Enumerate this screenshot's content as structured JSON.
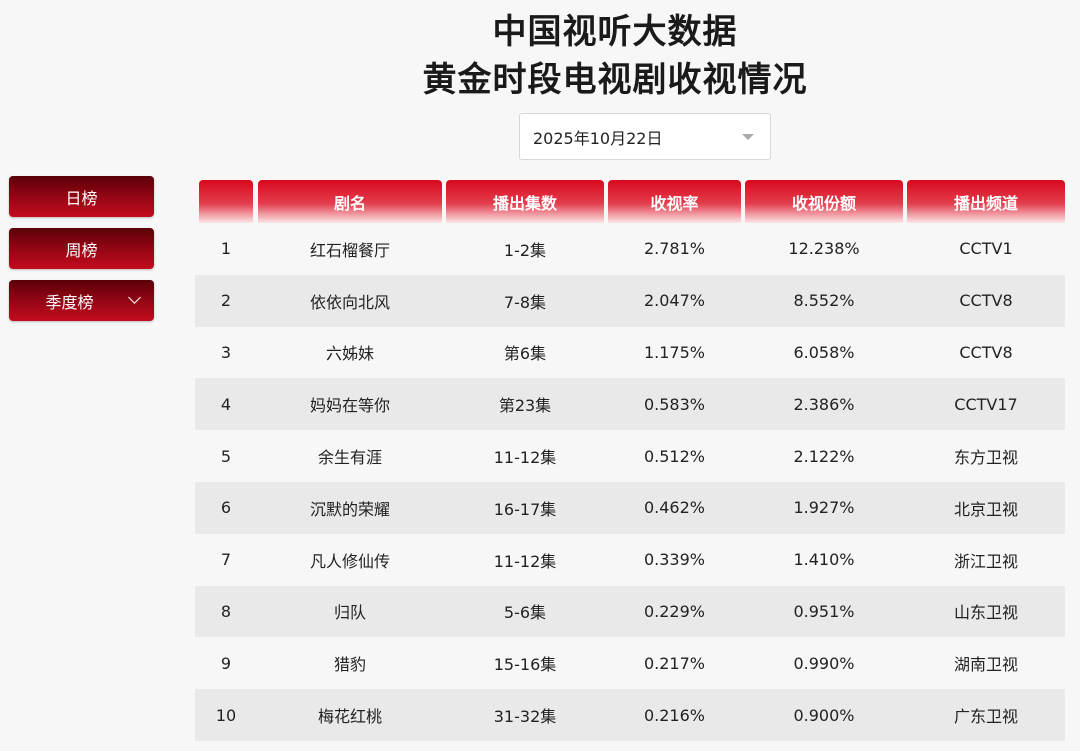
{
  "title_line1": "中国视听大数据",
  "title_line2": "黄金时段电视剧收视情况",
  "date_select": {
    "value": "2025年10月22日"
  },
  "side_menu": [
    {
      "label": "日榜"
    },
    {
      "label": "周榜"
    },
    {
      "label": "季度榜"
    }
  ],
  "colors": {
    "accent": "#d8081c",
    "button_dark": "#5a0008",
    "row_alt": "#e9e9e9"
  },
  "table": {
    "headers": [
      "",
      "剧名",
      "播出集数",
      "收视率",
      "收视份额",
      "播出频道"
    ],
    "rows": [
      [
        "1",
        "红石榴餐厅",
        "1-2集",
        "2.781%",
        "12.238%",
        "CCTV1"
      ],
      [
        "2",
        "依依向北风",
        "7-8集",
        "2.047%",
        "8.552%",
        "CCTV8"
      ],
      [
        "3",
        "六姊妹",
        "第6集",
        "1.175%",
        "6.058%",
        "CCTV8"
      ],
      [
        "4",
        "妈妈在等你",
        "第23集",
        "0.583%",
        "2.386%",
        "CCTV17"
      ],
      [
        "5",
        "余生有涯",
        "11-12集",
        "0.512%",
        "2.122%",
        "东方卫视"
      ],
      [
        "6",
        "沉默的荣耀",
        "16-17集",
        "0.462%",
        "1.927%",
        "北京卫视"
      ],
      [
        "7",
        "凡人修仙传",
        "11-12集",
        "0.339%",
        "1.410%",
        "浙江卫视"
      ],
      [
        "8",
        "归队",
        "5-6集",
        "0.229%",
        "0.951%",
        "山东卫视"
      ],
      [
        "9",
        "猎豹",
        "15-16集",
        "0.217%",
        "0.990%",
        "湖南卫视"
      ],
      [
        "10",
        "梅花红桃",
        "31-32集",
        "0.216%",
        "0.900%",
        "广东卫视"
      ]
    ]
  }
}
